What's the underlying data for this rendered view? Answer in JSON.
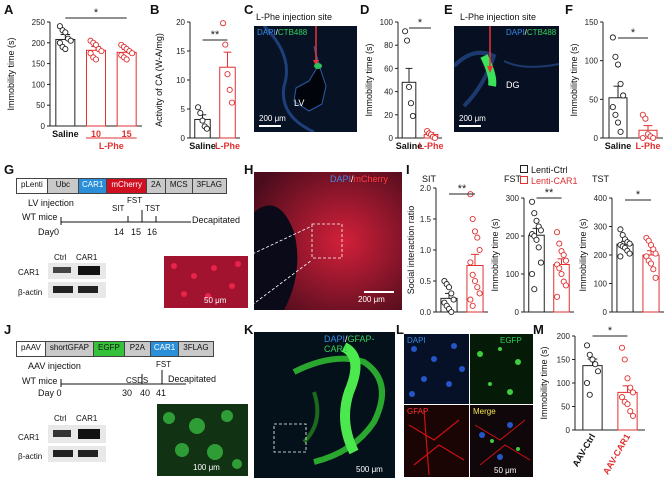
{
  "panels": [
    "A",
    "B",
    "C",
    "D",
    "E",
    "F",
    "G",
    "H",
    "I",
    "J",
    "K",
    "L",
    "M"
  ],
  "colors": {
    "black": "#222222",
    "red": "#e03030",
    "blue": "#2a7fd8",
    "green": "#33cc33",
    "mcherry": "#d01020",
    "gfap_red": "#cc1111"
  },
  "A": {
    "ylabel": "Immobility time (s)",
    "yticks": [
      "0",
      "50",
      "100",
      "150",
      "200",
      "250"
    ],
    "sig": "*",
    "xlabels": [
      "Saline",
      "10",
      "15"
    ],
    "group_label": "L-Phe",
    "chart_data": {
      "type": "bar",
      "categories": [
        "Saline",
        "10",
        "15"
      ],
      "values": [
        208,
        182,
        177
      ],
      "sem": [
        12,
        9,
        7
      ],
      "ylim": [
        0,
        250
      ],
      "points": [
        [
          240,
          230,
          225,
          210,
          205,
          200,
          190,
          185
        ],
        [
          205,
          200,
          195,
          185,
          180,
          175,
          165,
          160
        ],
        [
          195,
          190,
          185,
          180,
          175,
          170,
          165,
          160
        ]
      ]
    }
  },
  "B": {
    "ylabel": "Activity of CA (W-A/mg)",
    "yticks": [
      "0",
      "5",
      "10",
      "15",
      "20"
    ],
    "sig": "**",
    "xlabels": [
      "Saline",
      "L-Phe"
    ],
    "chart_data": {
      "type": "bar",
      "categories": [
        "Saline",
        "L-Phe"
      ],
      "values": [
        3.2,
        12.2
      ],
      "sem": [
        0.8,
        2.6
      ],
      "ylim": [
        0,
        20
      ],
      "points": [
        [
          5.3,
          4.3,
          3.0,
          2.0,
          1.6
        ],
        [
          19.8,
          16.1,
          11.0,
          8.3,
          6.1
        ]
      ]
    }
  },
  "C": {
    "title": "L-Phe injection site",
    "dapi": "DAPI",
    "ctb": "CTB488",
    "region": "LV",
    "scale": "200 μm"
  },
  "D": {
    "ylabel": "Immobility time (s)",
    "yticks": [
      "0",
      "20",
      "40",
      "60",
      "80",
      "100"
    ],
    "sig": "*",
    "xlabels": [
      "Saline",
      "L-Phe"
    ],
    "chart_data": {
      "type": "bar",
      "categories": [
        "Saline",
        "L-Phe"
      ],
      "values": [
        48,
        3
      ],
      "sem": [
        12,
        1.5
      ],
      "ylim": [
        0,
        100
      ],
      "points": [
        [
          92,
          84,
          44,
          30,
          19
        ],
        [
          6,
          4,
          3,
          1,
          0
        ]
      ]
    }
  },
  "E": {
    "title": "L-Phe injection site",
    "dapi": "DAPI",
    "ctb": "CTB488",
    "region": "DG",
    "scale": "200 μm"
  },
  "F": {
    "ylabel": "Immobility time (s)",
    "yticks": [
      "0",
      "50",
      "100",
      "150"
    ],
    "sig": "*",
    "xlabels": [
      "Saline",
      "L-Phe"
    ],
    "chart_data": {
      "type": "bar",
      "categories": [
        "Saline",
        "L-Phe"
      ],
      "values": [
        52,
        10
      ],
      "sem": [
        15,
        6
      ],
      "ylim": [
        0,
        150
      ],
      "points": [
        [
          130,
          105,
          95,
          70,
          55,
          40,
          30,
          20,
          8
        ],
        [
          30,
          25,
          5,
          2,
          0,
          0
        ]
      ]
    }
  },
  "G": {
    "construct": [
      "pLenti",
      "Ubc",
      "CAR1",
      "mCherry",
      "2A",
      "MCS",
      "3FLAG"
    ],
    "injection": "LV injection",
    "mice": "WT mice",
    "day_label": "Day",
    "timeline": [
      "0",
      "14",
      "15",
      "16"
    ],
    "events": [
      "SIT",
      "FST",
      "TST"
    ],
    "end": "Decapitated",
    "blot_cols": [
      "Ctrl",
      "CAR1"
    ],
    "blot_rows": [
      "CAR1",
      "β-actin"
    ]
  },
  "H": {
    "dapi": "DAPI",
    "mcherry": "mCherry",
    "scale_inset": "50 μm",
    "scale": "200 μm"
  },
  "I": {
    "legend": [
      "Lenti-Ctrl",
      "Lenti-CAR1"
    ],
    "sit": {
      "title": "SIT",
      "ylabel": "Social interaction ratio",
      "yticks": [
        "0.0",
        "0.5",
        "1.0",
        "1.5",
        "2.0"
      ],
      "sig": "**",
      "chart_data": {
        "type": "bar",
        "categories": [
          "Lenti-Ctrl",
          "Lenti-CAR1"
        ],
        "values": [
          0.22,
          0.75
        ],
        "sem": [
          0.08,
          0.18
        ],
        "ylim": [
          0,
          2.0
        ],
        "points": [
          [
            0.5,
            0.45,
            0.4,
            0.3,
            0.2,
            0.15,
            0.1,
            0.05,
            0.0
          ],
          [
            1.9,
            1.5,
            1.3,
            1.2,
            1.0,
            0.8,
            0.6,
            0.5,
            0.4,
            0.3,
            0.2,
            0.1
          ]
        ]
      }
    },
    "fst": {
      "title": "FST",
      "ylabel": "Immobility time (s)",
      "yticks": [
        "0",
        "100",
        "200",
        "300"
      ],
      "sig": "**",
      "chart_data": {
        "type": "bar",
        "categories": [
          "Lenti-Ctrl",
          "Lenti-CAR1"
        ],
        "values": [
          202,
          125
        ],
        "sem": [
          18,
          15
        ],
        "ylim": [
          0,
          300
        ],
        "points": [
          [
            290,
            260,
            240,
            225,
            215,
            205,
            200,
            190,
            170,
            130,
            100,
            60
          ],
          [
            210,
            180,
            160,
            150,
            135,
            125,
            115,
            100,
            80,
            70,
            40
          ]
        ]
      }
    },
    "tst": {
      "title": "TST",
      "ylabel": "Immobility time (s)",
      "yticks": [
        "0",
        "100",
        "200",
        "300",
        "400"
      ],
      "sig": "*",
      "chart_data": {
        "type": "bar",
        "categories": [
          "Lenti-Ctrl",
          "Lenti-CAR1"
        ],
        "values": [
          238,
          200
        ],
        "sem": [
          10,
          15
        ],
        "ylim": [
          0,
          400
        ],
        "points": [
          [
            290,
            270,
            255,
            245,
            240,
            235,
            230,
            225,
            215,
            205,
            195
          ],
          [
            260,
            250,
            235,
            220,
            205,
            195,
            180,
            170,
            150,
            120
          ]
        ]
      }
    }
  },
  "J": {
    "construct": [
      "pAAV",
      "shortGFAP",
      "EGFP",
      "P2A",
      "CAR1",
      "3FLAG"
    ],
    "injection": "AAV injection",
    "mice": "WT mice",
    "day_label": "Day",
    "timeline": [
      "0",
      "30",
      "40",
      "41"
    ],
    "events": [
      "CSDS",
      "FST"
    ],
    "end": "Decapitated",
    "blot_cols": [
      "Ctrl",
      "CAR1"
    ],
    "blot_rows": [
      "CAR1",
      "β-actin"
    ],
    "scale_inset": "100 μm"
  },
  "K": {
    "dapi": "DAPI",
    "gfap": "GFAP-CAR1",
    "scale": "500 μm"
  },
  "L": {
    "dapi": "DAPI",
    "egfp": "EGFP",
    "gfap": "GFAP",
    "merge": "Merge",
    "scale": "50 μm"
  },
  "M": {
    "ylabel": "Immobility time (s)",
    "yticks": [
      "0",
      "50",
      "100",
      "150",
      "200"
    ],
    "sig": "*",
    "xlabels": [
      "AAV-Ctrl",
      "AAV-CAR1"
    ],
    "chart_data": {
      "type": "bar",
      "categories": [
        "AAV-Ctrl",
        "AAV-CAR1"
      ],
      "values": [
        137,
        80
      ],
      "sem": [
        14,
        14
      ],
      "ylim": [
        0,
        200
      ],
      "points": [
        [
          180,
          160,
          150,
          140,
          125,
          100,
          75
        ],
        [
          175,
          150,
          110,
          90,
          80,
          70,
          60,
          55,
          40,
          30
        ]
      ]
    }
  }
}
